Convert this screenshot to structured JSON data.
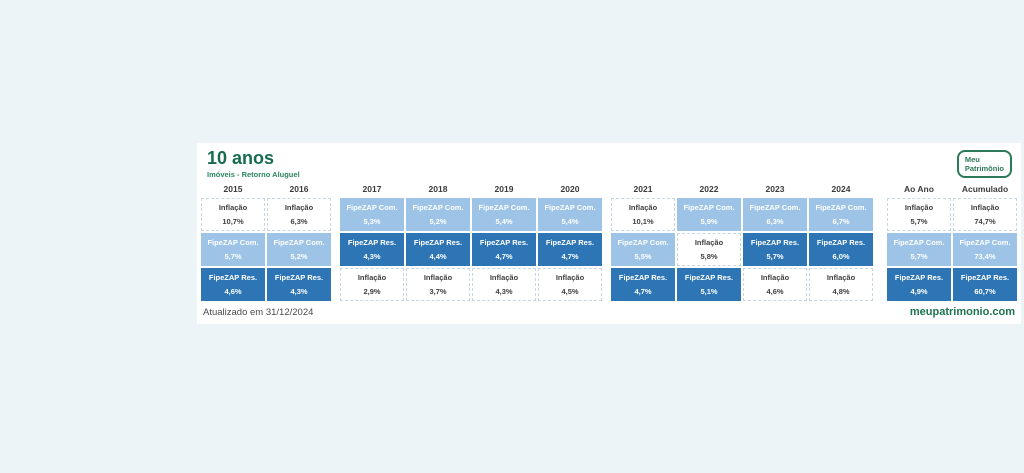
{
  "page": {
    "background_color": "#edf4f8"
  },
  "card": {
    "title": "10 anos",
    "subtitle": "Imóveis - Retorno Aluguel",
    "updated": "Atualizado em 31/12/2024",
    "website": "meupatrimonio.com",
    "logo": {
      "line1": "Meu",
      "line2": "Patrimônio"
    }
  },
  "colors": {
    "background": "#edf4f8",
    "card": "#ffffff",
    "title_green": "#176b4e",
    "subtitle_green": "#2a8560",
    "brand_green": "#2c7a58",
    "website_green": "#1d7450",
    "light_blue_com": "#9dc3e6",
    "dark_blue_res": "#2e75b6",
    "header_text": "#3b3b3b",
    "white_cell_text": "#404040"
  },
  "table": {
    "columns": [
      {
        "header": "2015",
        "group": "years-1",
        "cells": [
          {
            "label": "Inflação",
            "value": "10,7%",
            "type": "inflacao"
          },
          {
            "label": "FipeZAP Com.",
            "value": "5,7%",
            "type": "com"
          },
          {
            "label": "FipeZAP Res.",
            "value": "4,6%",
            "type": "res"
          }
        ]
      },
      {
        "header": "2016",
        "group": "years-1",
        "cells": [
          {
            "label": "Inflação",
            "value": "6,3%",
            "type": "inflacao"
          },
          {
            "label": "FipeZAP Com.",
            "value": "5,2%",
            "type": "com"
          },
          {
            "label": "FipeZAP Res.",
            "value": "4,3%",
            "type": "res"
          }
        ]
      },
      {
        "header": "2017",
        "group": "years-2",
        "cells": [
          {
            "label": "FipeZAP Com.",
            "value": "5,3%",
            "type": "com"
          },
          {
            "label": "FipeZAP Res.",
            "value": "4,3%",
            "type": "res"
          },
          {
            "label": "Inflação",
            "value": "2,9%",
            "type": "inflacao"
          }
        ]
      },
      {
        "header": "2018",
        "group": "years-2",
        "cells": [
          {
            "label": "FipeZAP Com.",
            "value": "5,2%",
            "type": "com"
          },
          {
            "label": "FipeZAP Res.",
            "value": "4,4%",
            "type": "res"
          },
          {
            "label": "Inflação",
            "value": "3,7%",
            "type": "inflacao"
          }
        ]
      },
      {
        "header": "2019",
        "group": "years-2",
        "cells": [
          {
            "label": "FipeZAP Com.",
            "value": "5,4%",
            "type": "com"
          },
          {
            "label": "FipeZAP Res.",
            "value": "4,7%",
            "type": "res"
          },
          {
            "label": "Inflação",
            "value": "4,3%",
            "type": "inflacao"
          }
        ]
      },
      {
        "header": "2020",
        "group": "years-2",
        "cells": [
          {
            "label": "FipeZAP Com.",
            "value": "5,4%",
            "type": "com"
          },
          {
            "label": "FipeZAP Res.",
            "value": "4,7%",
            "type": "res"
          },
          {
            "label": "Inflação",
            "value": "4,5%",
            "type": "inflacao"
          }
        ]
      },
      {
        "header": "2021",
        "group": "years-3",
        "cells": [
          {
            "label": "Inflação",
            "value": "10,1%",
            "type": "inflacao"
          },
          {
            "label": "FipeZAP Com.",
            "value": "5,5%",
            "type": "com"
          },
          {
            "label": "FipeZAP Res.",
            "value": "4,7%",
            "type": "res"
          }
        ]
      },
      {
        "header": "2022",
        "group": "years-3",
        "cells": [
          {
            "label": "FipeZAP Com.",
            "value": "5,9%",
            "type": "com"
          },
          {
            "label": "Inflação",
            "value": "5,8%",
            "type": "inflacao"
          },
          {
            "label": "FipeZAP Res.",
            "value": "5,1%",
            "type": "res"
          }
        ]
      },
      {
        "header": "2023",
        "group": "years-3",
        "cells": [
          {
            "label": "FipeZAP Com.",
            "value": "6,3%",
            "type": "com"
          },
          {
            "label": "FipeZAP Res.",
            "value": "5,7%",
            "type": "res"
          },
          {
            "label": "Inflação",
            "value": "4,6%",
            "type": "inflacao"
          }
        ]
      },
      {
        "header": "2024",
        "group": "years-3",
        "cells": [
          {
            "label": "FipeZAP Com.",
            "value": "6,7%",
            "type": "com"
          },
          {
            "label": "FipeZAP Res.",
            "value": "6,0%",
            "type": "res"
          },
          {
            "label": "Inflação",
            "value": "4,8%",
            "type": "inflacao"
          }
        ]
      },
      {
        "header": "Ao Ano",
        "group": "summary",
        "cells": [
          {
            "label": "Inflação",
            "value": "5,7%",
            "type": "inflacao"
          },
          {
            "label": "FipeZAP Com.",
            "value": "5,7%",
            "type": "com"
          },
          {
            "label": "FipeZAP Res.",
            "value": "4,9%",
            "type": "res"
          }
        ]
      },
      {
        "header": "Acumulado",
        "group": "summary",
        "cells": [
          {
            "label": "Inflação",
            "value": "74,7%",
            "type": "inflacao"
          },
          {
            "label": "FipeZAP Com.",
            "value": "73,4%",
            "type": "com"
          },
          {
            "label": "FipeZAP Res.",
            "value": "60,7%",
            "type": "res"
          }
        ]
      }
    ]
  },
  "chart_data": {
    "type": "table",
    "title": "10 anos",
    "subtitle": "Imóveis - Retorno Aluguel",
    "categories": [
      "2015",
      "2016",
      "2017",
      "2018",
      "2019",
      "2020",
      "2021",
      "2022",
      "2023",
      "2024",
      "Ao Ano",
      "Acumulado"
    ],
    "series": [
      {
        "name": "Inflação",
        "values_pct": [
          10.7,
          6.3,
          2.9,
          3.7,
          4.3,
          4.5,
          10.1,
          5.8,
          4.6,
          4.8,
          5.7,
          74.7
        ]
      },
      {
        "name": "FipeZAP Com.",
        "values_pct": [
          5.7,
          5.2,
          5.3,
          5.2,
          5.4,
          5.4,
          5.5,
          5.9,
          6.3,
          6.7,
          5.7,
          73.4
        ]
      },
      {
        "name": "FipeZAP Res.",
        "values_pct": [
          4.6,
          4.3,
          4.3,
          4.4,
          4.7,
          4.7,
          4.7,
          5.1,
          5.7,
          6.0,
          4.9,
          60.7
        ]
      }
    ],
    "layout_hints": {
      "style": "ranking quilt table: each column sorted descending by return",
      "cell_colors": {
        "Inflação": "#ffffff",
        "FipeZAP Com.": "#9dc3e6",
        "FipeZAP Res.": "#2e75b6"
      },
      "updated_note": "Atualizado em 31/12/2024"
    }
  }
}
